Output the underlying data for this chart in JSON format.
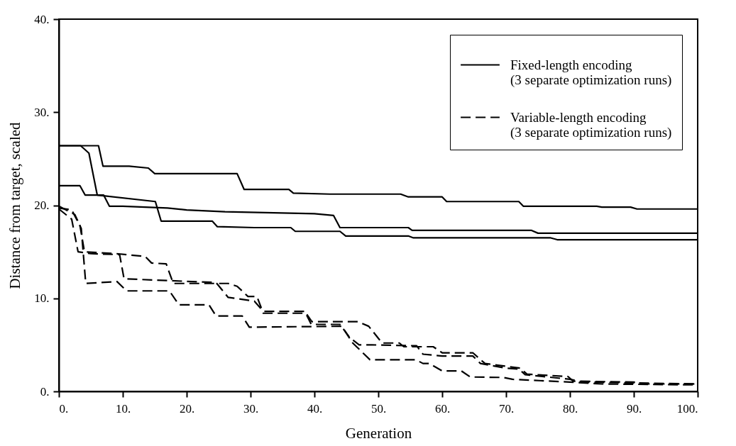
{
  "chart_data": {
    "type": "line",
    "xlabel": "Generation",
    "ylabel": "Distance from target, scaled",
    "xlim": [
      0,
      100
    ],
    "ylim": [
      0,
      40
    ],
    "xticks": [
      {
        "value": 0,
        "label": "0."
      },
      {
        "value": 10,
        "label": "10."
      },
      {
        "value": 20,
        "label": "20."
      },
      {
        "value": 30,
        "label": "30."
      },
      {
        "value": 40,
        "label": "40."
      },
      {
        "value": 50,
        "label": "50."
      },
      {
        "value": 60,
        "label": "60."
      },
      {
        "value": 70,
        "label": "70."
      },
      {
        "value": 80,
        "label": "80."
      },
      {
        "value": 90,
        "label": "90."
      },
      {
        "value": 100,
        "label": "100."
      }
    ],
    "yticks": [
      {
        "value": 0,
        "label": "0."
      },
      {
        "value": 10,
        "label": "10."
      },
      {
        "value": 20,
        "label": "20."
      },
      {
        "value": 30,
        "label": "30."
      },
      {
        "value": 40,
        "label": "40."
      }
    ],
    "grid": false,
    "legend": "top right",
    "marker": "none",
    "series": [
      {
        "name": "Fixed-length encoding (3 separate optimization runs)",
        "color": "#000000",
        "line_style": "solid",
        "x": [
          0,
          6.2,
          6.9,
          11,
          14,
          15,
          27.9,
          29,
          36,
          36.7,
          42.4,
          53.5,
          54.7,
          60,
          60.7,
          72,
          72.7,
          84.2,
          85,
          89.5,
          90.5,
          100
        ],
        "values": [
          26.4,
          26.4,
          24.2,
          24.2,
          24,
          23.4,
          23.4,
          21.7,
          21.7,
          21.3,
          21.2,
          21.2,
          20.9,
          20.9,
          20.4,
          20.4,
          19.9,
          19.9,
          19.8,
          19.8,
          19.6,
          19.6
        ]
      },
      {
        "color": "#000000",
        "line_style": "solid",
        "x": [
          0,
          3.4,
          4.7,
          6,
          15.1,
          16,
          24,
          24.8,
          30.6,
          36.3,
          37,
          44,
          44.9,
          54.7,
          55.5,
          77,
          78,
          100
        ],
        "values": [
          26.4,
          26.4,
          25.6,
          21.1,
          20.4,
          18.3,
          18.3,
          17.7,
          17.6,
          17.6,
          17.2,
          17.2,
          16.7,
          16.7,
          16.5,
          16.5,
          16.3,
          16.3
        ]
      },
      {
        "color": "#000000",
        "line_style": "solid",
        "x": [
          0,
          3.3,
          4.1,
          7,
          7.9,
          10,
          17,
          20,
          26,
          40,
          43,
          44,
          54.7,
          55.3,
          74,
          75,
          100
        ],
        "values": [
          22.1,
          22.1,
          21.1,
          21.1,
          19.9,
          19.9,
          19.7,
          19.5,
          19.3,
          19.1,
          18.9,
          17.6,
          17.6,
          17.3,
          17.3,
          17.0,
          17.0
        ]
      },
      {
        "name": "Variable-length encoding (3 separate optimization runs)",
        "color": "#000000",
        "line_style": "dashed",
        "x": [
          0,
          2,
          3.3,
          4,
          9,
          13.5,
          14.5,
          16.8,
          17.9,
          26.5,
          27.9,
          29.6,
          31,
          32,
          38.7,
          39.6,
          46.8,
          48.5,
          50.6,
          53.3,
          54,
          58.6,
          60,
          64.8,
          66.7,
          72.2,
          73.3,
          79.7,
          80.5,
          90,
          91,
          100
        ],
        "values": [
          19.7,
          19.5,
          17.8,
          15,
          14.8,
          14.5,
          13.8,
          13.7,
          11.6,
          11.6,
          11.3,
          10.2,
          10.2,
          8.4,
          8.4,
          7.5,
          7.5,
          7,
          5.2,
          5.2,
          4.8,
          4.8,
          4.15,
          4.15,
          3,
          2.5,
          1.85,
          1.6,
          1.1,
          1,
          0.8,
          0.8
        ]
      },
      {
        "color": "#000000",
        "line_style": "dashed",
        "x": [
          0,
          2.5,
          3.5,
          4.2,
          9.1,
          10.6,
          17.3,
          18.8,
          23.5,
          24.6,
          28.7,
          29.8,
          44.3,
          46,
          48.7,
          55.9,
          57,
          58,
          60,
          63,
          64.4,
          69.6,
          71,
          80,
          85,
          100
        ],
        "values": [
          19.9,
          19,
          17.5,
          11.6,
          11.8,
          10.8,
          10.8,
          9.3,
          9.3,
          8.1,
          8.1,
          6.9,
          7,
          5.2,
          3.4,
          3.4,
          3,
          3,
          2.2,
          2.2,
          1.55,
          1.5,
          1.3,
          1,
          0.8,
          0.7
        ]
      },
      {
        "color": "#000000",
        "line_style": "dashed",
        "x": [
          0,
          2,
          3,
          5,
          9.5,
          10.2,
          24.6,
          26.5,
          30.6,
          32,
          38.5,
          39.5,
          44,
          45.5,
          47,
          49,
          56,
          57,
          60,
          64.8,
          66,
          70,
          72,
          73,
          80,
          82,
          100
        ],
        "values": [
          19.6,
          18.5,
          15,
          14.8,
          14.7,
          12.1,
          11.7,
          10.1,
          9.7,
          8.6,
          8.6,
          7.2,
          7.2,
          5.8,
          5,
          5,
          4.9,
          4,
          3.8,
          3.8,
          3,
          2.5,
          2.4,
          1.8,
          1.3,
          1,
          0.8
        ]
      }
    ]
  }
}
